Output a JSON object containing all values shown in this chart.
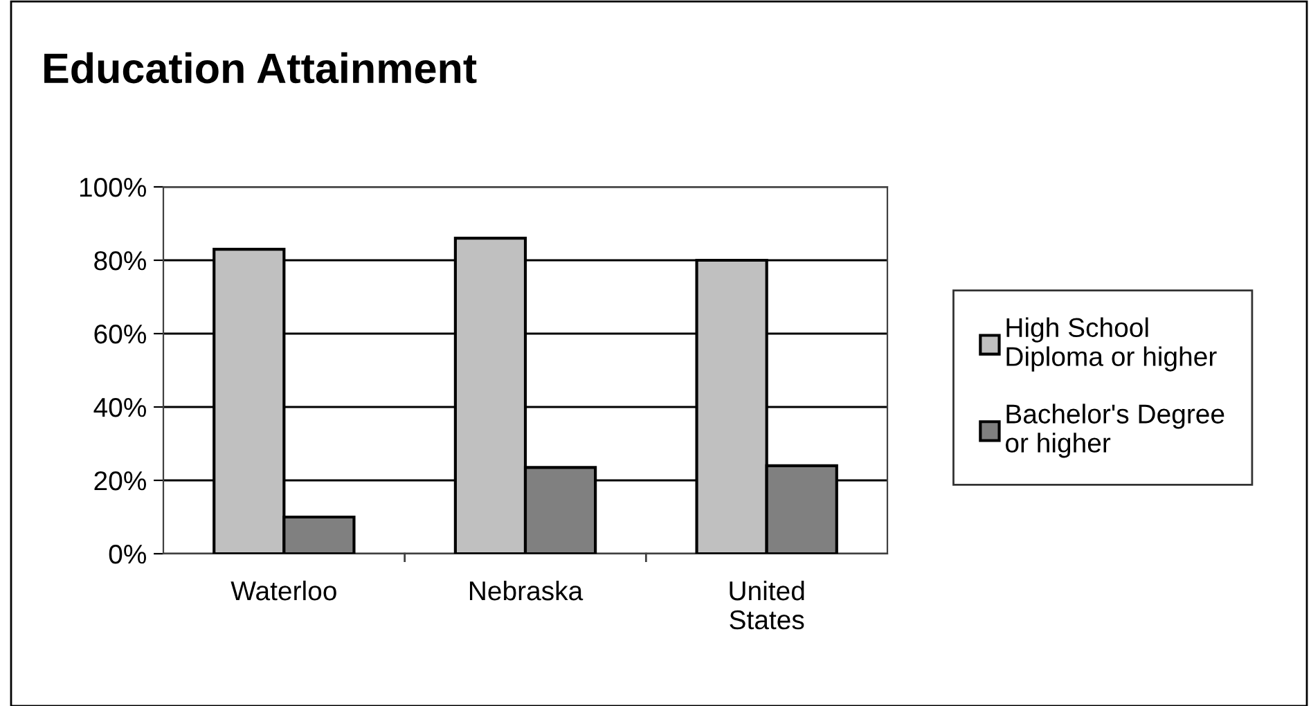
{
  "chart_data": {
    "type": "bar",
    "title": "Education Attainment",
    "categories": [
      "Waterloo",
      "Nebraska",
      "United\nStates"
    ],
    "series": [
      {
        "name": "High School\nDiploma or higher",
        "color": "#c0c0c0",
        "values": [
          83,
          86,
          80
        ]
      },
      {
        "name": "Bachelor's Degree\nor higher",
        "color": "#808080",
        "values": [
          10,
          23.5,
          24
        ]
      }
    ],
    "ylim": [
      0,
      100
    ],
    "yticks": [
      {
        "value": 0,
        "label": "0%"
      },
      {
        "value": 20,
        "label": "20%"
      },
      {
        "value": 40,
        "label": "40%"
      },
      {
        "value": 60,
        "label": "60%"
      },
      {
        "value": 80,
        "label": "80%"
      },
      {
        "value": 100,
        "label": "100%"
      }
    ],
    "grid": "y",
    "legend": "right"
  }
}
